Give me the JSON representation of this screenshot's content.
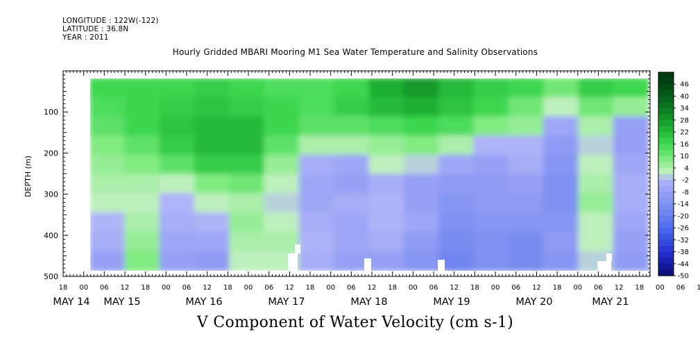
{
  "header": {
    "longitude": "LONGITUDE : 122W(-122)",
    "latitude": "LATITUDE : 36.8N",
    "year": "YEAR : 2011"
  },
  "chart_data": {
    "type": "heatmap",
    "title": "Hourly Gridded MBARI Mooring M1 Sea Water Temperature and Salinity Observations",
    "xlabel": "V Component of Water Velocity (cm s-1)",
    "ylabel": "DEPTH (m)",
    "y_ticks": [
      100,
      200,
      300,
      400,
      500
    ],
    "ylim": [
      500,
      0
    ],
    "x_hour_ticks": [
      "18",
      "00",
      "06",
      "12",
      "18",
      "00",
      "06",
      "12",
      "18",
      "00",
      "06",
      "12",
      "18",
      "00",
      "06",
      "12",
      "18",
      "00",
      "06",
      "12",
      "18",
      "00",
      "06",
      "12",
      "18",
      "00",
      "06",
      "12",
      "18",
      "00",
      "06",
      "12",
      "18"
    ],
    "x_day_labels": [
      "MAY 14",
      "MAY 15",
      "MAY 16",
      "MAY 17",
      "MAY 18",
      "MAY 19",
      "MAY 20",
      "MAY 21"
    ],
    "colorbar": {
      "labels": [
        "46",
        "40",
        "34",
        "28",
        "22",
        "16",
        "10",
        "4",
        "-2",
        "-8",
        "-14",
        "-20",
        "-26",
        "-32",
        "-38",
        "-44",
        "-50"
      ],
      "vmin": -50,
      "vmax": 52
    },
    "grid": false,
    "legend": "right",
    "depth_levels": [
      20,
      70,
      120,
      170,
      220,
      270,
      320,
      370,
      420,
      470
    ],
    "times": [
      "05-14 00:00",
      "05-14 12:00",
      "05-15 00:00",
      "05-15 12:00",
      "05-16 00:00",
      "05-16 12:00",
      "05-17 00:00",
      "05-17 12:00",
      "05-18 00:00",
      "05-18 12:00",
      "05-19 00:00",
      "05-19 12:00",
      "05-20 00:00",
      "05-20 12:00",
      "05-21 00:00",
      "05-21 12:00"
    ],
    "values": [
      [
        16,
        16,
        16,
        18,
        16,
        14,
        14,
        16,
        24,
        28,
        22,
        18,
        16,
        10,
        18,
        16
      ],
      [
        14,
        16,
        18,
        20,
        18,
        16,
        14,
        18,
        22,
        24,
        20,
        16,
        10,
        2,
        10,
        6
      ],
      [
        12,
        16,
        20,
        22,
        22,
        16,
        12,
        12,
        14,
        16,
        14,
        8,
        6,
        -6,
        4,
        -8
      ],
      [
        8,
        12,
        18,
        22,
        22,
        12,
        4,
        4,
        6,
        8,
        4,
        -2,
        -2,
        -10,
        0,
        -8
      ],
      [
        6,
        8,
        12,
        18,
        18,
        6,
        -4,
        -6,
        2,
        0,
        -6,
        -8,
        -4,
        -12,
        2,
        -6
      ],
      [
        4,
        4,
        2,
        8,
        10,
        2,
        -6,
        -8,
        -4,
        -8,
        -10,
        -10,
        -8,
        -14,
        4,
        -4
      ],
      [
        2,
        2,
        -2,
        2,
        4,
        0,
        -6,
        -4,
        -2,
        -8,
        -12,
        -10,
        -10,
        -14,
        6,
        -4
      ],
      [
        -2,
        4,
        -4,
        -2,
        6,
        2,
        -4,
        -6,
        -2,
        -6,
        -14,
        -12,
        -12,
        -12,
        2,
        -6
      ],
      [
        -4,
        6,
        -6,
        -6,
        4,
        4,
        -2,
        -6,
        -4,
        -10,
        -16,
        -14,
        -16,
        -10,
        2,
        -8
      ],
      [
        -8,
        8,
        -8,
        -10,
        2,
        2,
        -4,
        -8,
        -8,
        -12,
        -18,
        -14,
        -16,
        -12,
        0,
        -10
      ]
    ]
  }
}
